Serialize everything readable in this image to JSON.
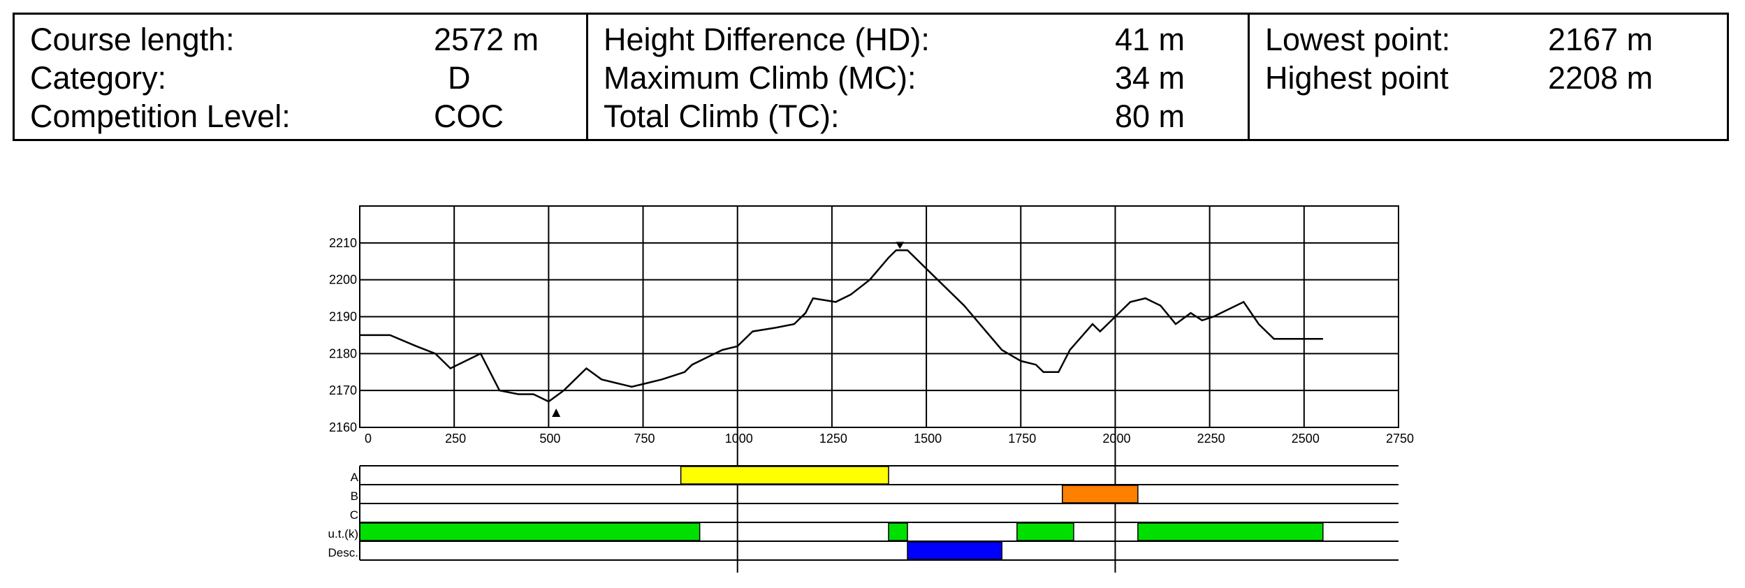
{
  "info": {
    "col1": [
      {
        "label": "Course length:",
        "value": "2572 m"
      },
      {
        "label": "Category:",
        "value": "D"
      },
      {
        "label": "Competition Level:",
        "value": "COC"
      }
    ],
    "col2": [
      {
        "label": "Height Difference (HD):",
        "value": "41 m"
      },
      {
        "label": "Maximum Climb (MC):",
        "value": "34 m"
      },
      {
        "label": "Total Climb (TC):",
        "value": "80 m"
      }
    ],
    "col3": [
      {
        "label": "Lowest point:",
        "value": "2167 m"
      },
      {
        "label": "Highest point",
        "value": "2208 m"
      }
    ]
  },
  "chart_data": {
    "type": "line",
    "title": "",
    "xlabel": "",
    "ylabel": "",
    "xlim": [
      0,
      2750
    ],
    "ylim": [
      2160,
      2220
    ],
    "grid": true,
    "x_ticks": [
      0,
      250,
      500,
      750,
      1000,
      1250,
      1500,
      1750,
      2000,
      2250,
      2500,
      2750
    ],
    "y_ticks": [
      2160,
      2170,
      2180,
      2190,
      2200,
      2210
    ],
    "series": [
      {
        "x": [
          0,
          80,
          150,
          200,
          240,
          320,
          370,
          420,
          460,
          500,
          540,
          600,
          640,
          680,
          720,
          760,
          800,
          860,
          880,
          940,
          960,
          1000,
          1040,
          1100,
          1150,
          1180,
          1200,
          1260,
          1300,
          1350,
          1400,
          1420,
          1450,
          1500,
          1550,
          1600,
          1650,
          1700,
          1750,
          1790,
          1810,
          1850,
          1880,
          1940,
          1960,
          2000,
          2040,
          2080,
          2120,
          2160,
          2200,
          2230,
          2260,
          2300,
          2340,
          2380,
          2420,
          2450,
          2500,
          2550
        ],
        "y": [
          2185,
          2185,
          2182,
          2180,
          2176,
          2180,
          2170,
          2169,
          2169,
          2167,
          2170,
          2176,
          2173,
          2172,
          2171,
          2172,
          2173,
          2175,
          2177,
          2180,
          2181,
          2182,
          2186,
          2187,
          2188,
          2191,
          2195,
          2194,
          2196,
          2200,
          2206,
          2208,
          2208,
          2203,
          2198,
          2193,
          2187,
          2181,
          2178,
          2177,
          2175,
          2175,
          2181,
          2188,
          2186,
          2190,
          2194,
          2195,
          2193,
          2188,
          2191,
          2189,
          2190,
          2192,
          2194,
          2188,
          2184,
          2184,
          2184,
          2184
        ]
      }
    ],
    "markers": [
      {
        "type": "low",
        "x": 520,
        "y": 2167
      },
      {
        "type": "high",
        "x": 1430,
        "y": 2208
      }
    ],
    "segment_rows": [
      {
        "label": "A",
        "color": "#ffff00",
        "segments": [
          [
            850,
            1400
          ]
        ]
      },
      {
        "label": "B",
        "color": "#ff7f00",
        "segments": [
          [
            1860,
            2060
          ]
        ]
      },
      {
        "label": "C",
        "color": "#ffffff",
        "segments": []
      },
      {
        "label": "u.t.(k)",
        "color": "#00e000",
        "segments": [
          [
            0,
            900
          ],
          [
            1400,
            1450
          ],
          [
            1740,
            1890
          ],
          [
            2060,
            2550
          ]
        ]
      },
      {
        "label": "Desc.",
        "color": "#0000ff",
        "segments": [
          [
            1450,
            1700
          ]
        ]
      }
    ]
  }
}
